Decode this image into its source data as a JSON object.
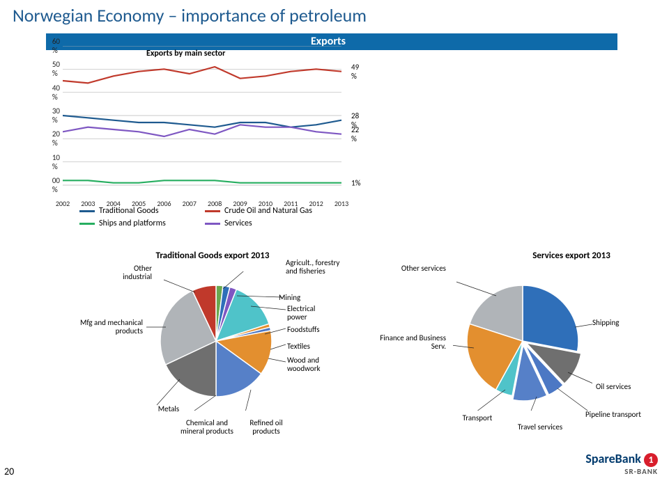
{
  "page": {
    "title": "Norwegian Economy – importance of petroleum",
    "ribbon_label": "Exports",
    "number": "20"
  },
  "line_chart": {
    "type": "line",
    "sub_title": "Exports by main sector",
    "ylim": [
      0,
      60
    ],
    "ytick_step": 10,
    "y_labels": [
      "00 %",
      "10 %",
      "20 %",
      "30 %",
      "40 %",
      "50 %",
      "60 %"
    ],
    "x_labels": [
      "2002",
      "2003",
      "2004",
      "2005",
      "2006",
      "2007",
      "2008",
      "2009",
      "2010",
      "2011",
      "2012",
      "2013"
    ],
    "series": [
      {
        "name": "Traditional Goods",
        "color": "#1e5a8f",
        "values": [
          30,
          29,
          28,
          27,
          27,
          26,
          25,
          27,
          27,
          25,
          26,
          28
        ],
        "end_label": "28 %"
      },
      {
        "name": "Crude Oil and Natural Gas",
        "color": "#c0392b",
        "values": [
          45,
          44,
          47,
          49,
          50,
          48,
          51,
          46,
          47,
          49,
          50,
          49
        ],
        "end_label": "49 %"
      },
      {
        "name": "Ships and platforms",
        "color": "#27ae60",
        "values": [
          2,
          2,
          1,
          1,
          2,
          2,
          2,
          1,
          1,
          1,
          1,
          1
        ],
        "end_label": "1%"
      },
      {
        "name": "Services",
        "color": "#7e57c2",
        "values": [
          23,
          25,
          24,
          23,
          21,
          24,
          22,
          26,
          25,
          25,
          23,
          22
        ],
        "end_label": "22 %"
      }
    ],
    "grid_color": "#b8b8b8",
    "legend": [
      "Traditional Goods",
      "Crude Oil and Natural Gas",
      "Ships and platforms",
      "Services"
    ]
  },
  "pie1": {
    "type": "pie",
    "title": "Traditional Goods export 2013",
    "slices": [
      {
        "label": "Agricult., forestry and fisheries",
        "value": 2,
        "color": "#6aa84f"
      },
      {
        "label": "Mining",
        "value": 2,
        "color": "#2f6fb9"
      },
      {
        "label": "Electrical power",
        "value": 2,
        "color": "#7e57c2"
      },
      {
        "label": "Foodstuffs",
        "value": 14,
        "color": "#4fc3c9"
      },
      {
        "label": "Textiles",
        "value": 1,
        "color": "#e38f2f"
      },
      {
        "label": "Wood and woodwork",
        "value": 1,
        "color": "#4c78c4"
      },
      {
        "label": "Refined oil products",
        "value": 13,
        "color": "#e38f2f"
      },
      {
        "label": "Chemical and mineral products",
        "value": 15,
        "color": "#5680c8"
      },
      {
        "label": "Metals",
        "value": 18,
        "color": "#6f6f6f"
      },
      {
        "label": "Mfg and mechanical products",
        "value": 25,
        "color": "#b0b4b8"
      },
      {
        "label": "Other industrial",
        "value": 7,
        "color": "#c0392b"
      }
    ]
  },
  "pie2": {
    "type": "pie",
    "title": "Services export 2013",
    "slices": [
      {
        "label": "Shipping",
        "value": 28,
        "color": "#2f6fb9"
      },
      {
        "label": "Oil services",
        "value": 10,
        "color": "#6f6f6f"
      },
      {
        "label": "Pipeline transport",
        "value": 5,
        "color": "#4c78c4"
      },
      {
        "label": "Travel services",
        "value": 10,
        "color": "#5680c8"
      },
      {
        "label": "Transport",
        "value": 5,
        "color": "#4fc3c9"
      },
      {
        "label": "Finance and Business Serv.",
        "value": 22,
        "color": "#e38f2f"
      },
      {
        "label": "Other services",
        "value": 20,
        "color": "#b0b4b8"
      }
    ]
  },
  "logo": {
    "brand1": "SpareBank",
    "brand2": "1",
    "sub": "SR-BANK"
  }
}
